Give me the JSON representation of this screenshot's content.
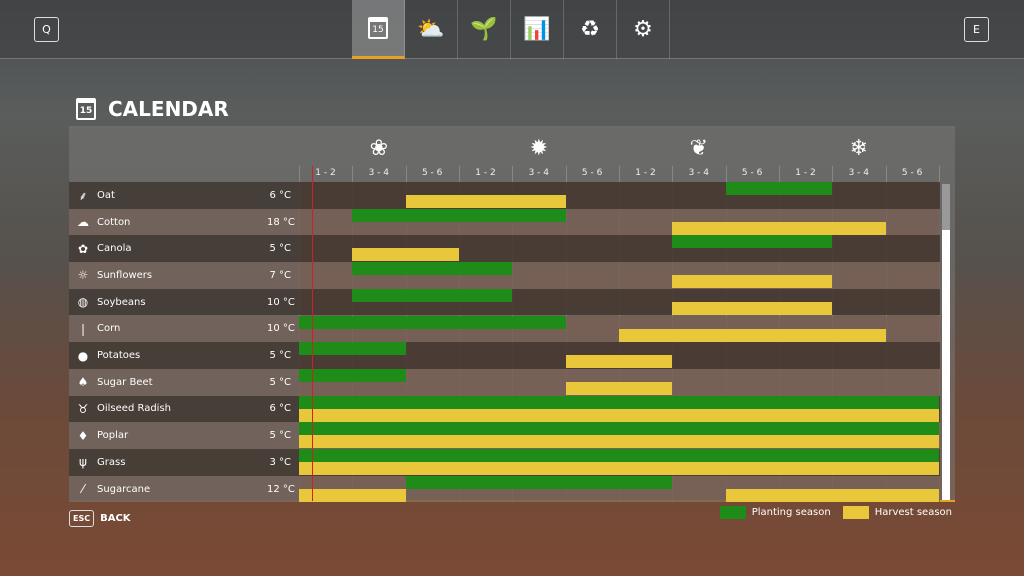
{
  "topbar": {
    "left_key": "Q",
    "right_key": "E",
    "tabs": [
      {
        "icon": "calendar-icon",
        "glyph": "15",
        "active": true
      },
      {
        "icon": "weather-icon",
        "glyph": "⛅"
      },
      {
        "icon": "sprout-icon",
        "glyph": "🌱"
      },
      {
        "icon": "prices-chart-icon",
        "glyph": "📊"
      },
      {
        "icon": "cycle-icon",
        "glyph": "♻"
      },
      {
        "icon": "settings-icon",
        "glyph": "⚙"
      }
    ]
  },
  "page": {
    "title": "CALENDAR",
    "icon_text": "15"
  },
  "seasons": [
    {
      "icon": "flower-icon",
      "glyph": "❀"
    },
    {
      "icon": "sun-icon",
      "glyph": "✹"
    },
    {
      "icon": "leaf-icon",
      "glyph": "❦"
    },
    {
      "icon": "snowflake-icon",
      "glyph": "❄"
    }
  ],
  "periods": [
    "1 - 2",
    "3 - 4",
    "5 - 6",
    "1 - 2",
    "3 - 4",
    "5 - 6",
    "1 - 2",
    "3 - 4",
    "5 - 6",
    "1 - 2",
    "3 - 4",
    "5 - 6"
  ],
  "colors": {
    "planting": "#1f8c1a",
    "harvest": "#e9c73a",
    "current": "#d02020",
    "accent": "#e8a020"
  },
  "current_period_fraction": 0.25,
  "crops": [
    {
      "name": "Oat",
      "temp": "6 °C",
      "glyph": "⸙",
      "planting": [
        [
          8,
          9
        ]
      ],
      "harvest": [
        [
          2,
          4
        ]
      ]
    },
    {
      "name": "Cotton",
      "temp": "18 °C",
      "glyph": "☁",
      "planting": [
        [
          1,
          4
        ]
      ],
      "harvest": [
        [
          7,
          10
        ]
      ]
    },
    {
      "name": "Canola",
      "temp": "5 °C",
      "glyph": "✿",
      "planting": [
        [
          7,
          9
        ]
      ],
      "harvest": [
        [
          1,
          2
        ]
      ]
    },
    {
      "name": "Sunflowers",
      "temp": "7 °C",
      "glyph": "☼",
      "planting": [
        [
          1,
          3
        ]
      ],
      "harvest": [
        [
          7,
          9
        ]
      ]
    },
    {
      "name": "Soybeans",
      "temp": "10 °C",
      "glyph": "◍",
      "planting": [
        [
          1,
          3
        ]
      ],
      "harvest": [
        [
          7,
          9
        ]
      ]
    },
    {
      "name": "Corn",
      "temp": "10 °C",
      "glyph": "❘",
      "planting": [
        [
          0,
          4
        ]
      ],
      "harvest": [
        [
          6,
          10
        ]
      ]
    },
    {
      "name": "Potatoes",
      "temp": "5 °C",
      "glyph": "●",
      "planting": [
        [
          0,
          1
        ]
      ],
      "harvest": [
        [
          5,
          6
        ]
      ]
    },
    {
      "name": "Sugar Beet",
      "temp": "5 °C",
      "glyph": "♠",
      "planting": [
        [
          0,
          1
        ]
      ],
      "harvest": [
        [
          5,
          6
        ]
      ]
    },
    {
      "name": "Oilseed Radish",
      "temp": "6 °C",
      "glyph": "♉",
      "planting": [
        [
          0,
          11
        ]
      ],
      "harvest": [
        [
          0,
          11
        ]
      ]
    },
    {
      "name": "Poplar",
      "temp": "5 °C",
      "glyph": "♦",
      "planting": [
        [
          0,
          11
        ]
      ],
      "harvest": [
        [
          0,
          11
        ]
      ]
    },
    {
      "name": "Grass",
      "temp": "3 °C",
      "glyph": "ψ",
      "planting": [
        [
          0,
          11
        ]
      ],
      "harvest": [
        [
          0,
          11
        ]
      ]
    },
    {
      "name": "Sugarcane",
      "temp": "12 °C",
      "glyph": "⁄",
      "planting": [
        [
          2,
          6
        ]
      ],
      "harvest": [
        [
          0,
          1
        ],
        [
          8,
          11
        ]
      ]
    }
  ],
  "footer": {
    "esc_key": "ESC",
    "back_label": "BACK",
    "legend_planting": "Planting season",
    "legend_harvest": "Harvest season"
  }
}
